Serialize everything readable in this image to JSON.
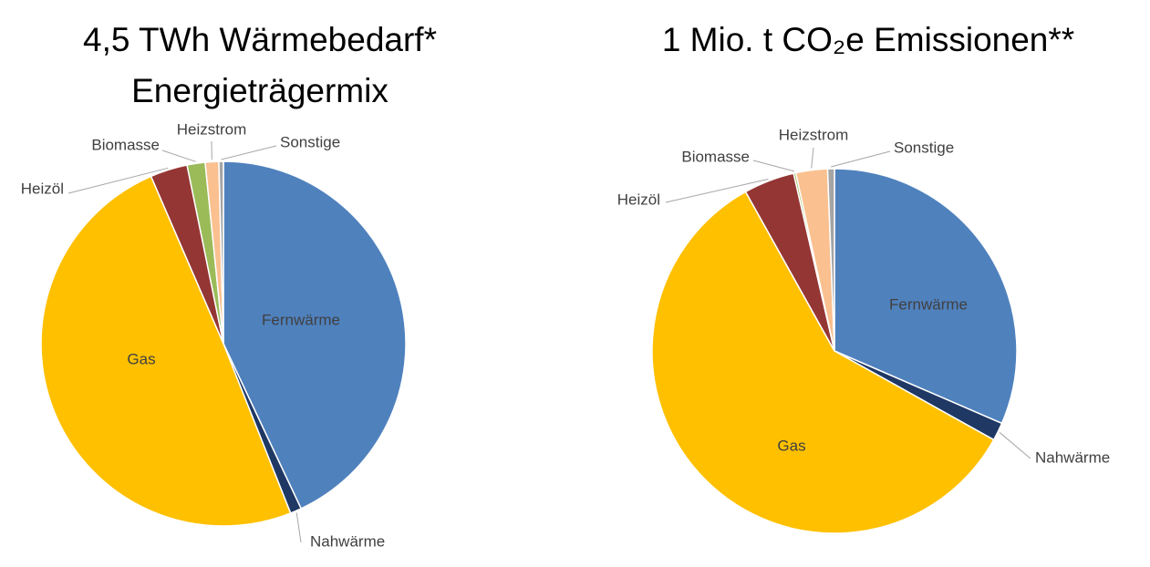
{
  "chart_data": [
    {
      "type": "pie",
      "title": "4,5 TWh Wärmebedarf*",
      "subtitle": "Energieträgermix",
      "categories": [
        "Fernwärme",
        "Nahwärme",
        "Gas",
        "Heizöl",
        "Biomasse",
        "Heizstrom",
        "Sonstige"
      ],
      "values": [
        43,
        1,
        49.5,
        3.3,
        1.6,
        1.2,
        0.4
      ],
      "colors": [
        "#4f81bd",
        "#1f3864",
        "#ffc000",
        "#943634",
        "#9bbb59",
        "#fac090",
        "#a5a5a5"
      ]
    },
    {
      "type": "pie",
      "title": "1 Mio. t CO₂e Emissionen**",
      "categories": [
        "Fernwärme",
        "Nahwärme",
        "Gas",
        "Heizöl",
        "Biomasse",
        "Heizstrom",
        "Sonstige"
      ],
      "values": [
        31.5,
        1.6,
        58.8,
        4.5,
        0.2,
        2.8,
        0.6
      ],
      "colors": [
        "#4f81bd",
        "#1f3864",
        "#ffc000",
        "#943634",
        "#9bbb59",
        "#fac090",
        "#a5a5a5"
      ]
    }
  ]
}
